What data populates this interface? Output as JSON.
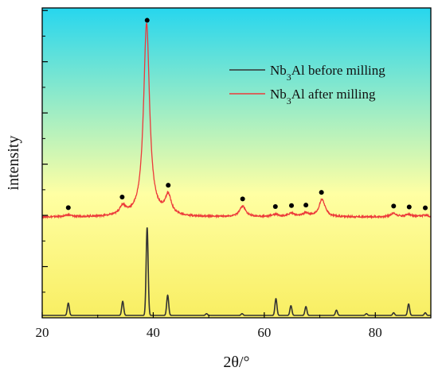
{
  "chart_data": {
    "type": "line",
    "title": "",
    "xlabel": "2θ/°",
    "ylabel": "intensity",
    "xlim": [
      20,
      90
    ],
    "xticks": [
      20,
      40,
      60,
      80
    ],
    "ytick_labels": false,
    "legend_position": "top-right",
    "background_gradient": [
      "#27d6ee",
      "#ffffa3",
      "#f8ee62"
    ],
    "series": [
      {
        "name_html": "Nb<tspan baseline-shift=\"sub\" font-size=\"70%\">3</tspan>Al before milling",
        "name": "Nb3Al before milling",
        "color": "#333333",
        "baseline": 0.0,
        "peaks": [
          [
            24.7,
            0.14
          ],
          [
            34.5,
            0.16
          ],
          [
            38.9,
            1.0
          ],
          [
            42.6,
            0.23
          ],
          [
            49.6,
            0.02
          ],
          [
            56.0,
            0.02
          ],
          [
            62.1,
            0.19
          ],
          [
            64.8,
            0.11
          ],
          [
            67.5,
            0.1
          ],
          [
            73.0,
            0.06
          ],
          [
            78.4,
            0.02
          ],
          [
            83.3,
            0.03
          ],
          [
            86.0,
            0.13
          ],
          [
            89.0,
            0.03
          ]
        ],
        "peak_width": 0.18
      },
      {
        "name_html": "Nb<tspan baseline-shift=\"sub\" font-size=\"70%\">3</tspan>Al after milling",
        "name": "Nb3Al after milling",
        "color": "#ec3a3a",
        "baseline": 1.12,
        "peaks": [
          [
            24.7,
            0.02
          ],
          [
            34.5,
            0.1
          ],
          [
            38.8,
            2.2
          ],
          [
            42.7,
            0.22
          ],
          [
            56.1,
            0.12
          ],
          [
            62.0,
            0.03
          ],
          [
            64.9,
            0.04
          ],
          [
            67.5,
            0.04
          ],
          [
            70.4,
            0.2
          ],
          [
            83.3,
            0.04
          ],
          [
            86.0,
            0.03
          ],
          [
            89.0,
            0.02
          ]
        ],
        "peak_width": 0.65
      }
    ],
    "phase_markers": [
      24.7,
      34.4,
      38.9,
      42.7,
      56.1,
      62.0,
      64.9,
      67.5,
      70.3,
      83.3,
      86.1,
      89.0
    ]
  }
}
